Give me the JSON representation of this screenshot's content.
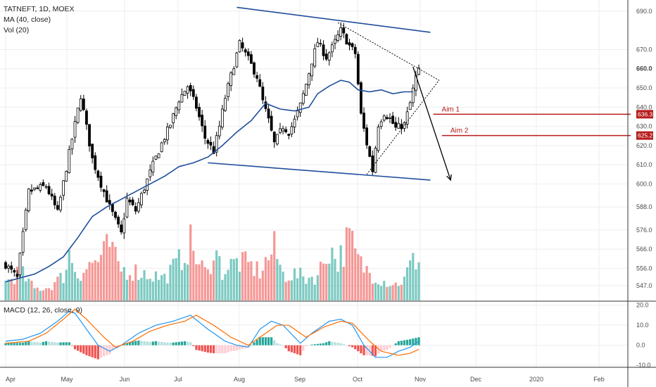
{
  "legend": {
    "symbol": "TATNEFT, 1D, MOEX",
    "ma": "MA (40, close)",
    "vol": "Vol (20)",
    "macd": "MACD (12, 26, close, 9)"
  },
  "colors": {
    "up": "#26a69a",
    "down": "#ef5350",
    "ma_line": "#1f4e9c",
    "channel": "#1f4e9c",
    "aim": "#b71c1c",
    "macd_line": "#2196f3",
    "signal_line": "#ff6d00",
    "grid": "#eeeeee"
  },
  "chart_data": [
    {
      "type": "candlestick",
      "panel": "price",
      "ylim": [
        540,
        694
      ],
      "y_ticks": [
        547,
        556,
        566,
        576,
        588,
        600,
        610,
        620,
        630,
        640,
        650,
        660,
        670,
        690
      ],
      "y_tick_labels": [
        "547.0",
        "556.0",
        "566.0",
        "576.0",
        "588.0",
        "600.0",
        "610.0",
        "620.0",
        "630.0",
        "640.0",
        "650.0",
        "660.0",
        "670.0",
        "690.0"
      ],
      "x_tick_labels": [
        "Apr",
        "May",
        "Jun",
        "Jul",
        "Aug",
        "Sep",
        "Oct",
        "Nov",
        "Dec",
        "2020",
        "Feb"
      ],
      "anchors": [
        [
          0,
          558
        ],
        [
          4,
          551
        ],
        [
          8,
          596
        ],
        [
          14,
          599
        ],
        [
          18,
          585
        ],
        [
          22,
          616
        ],
        [
          26,
          646
        ],
        [
          30,
          613
        ],
        [
          33,
          600
        ],
        [
          36,
          588
        ],
        [
          38,
          581
        ],
        [
          40,
          574
        ],
        [
          42,
          592
        ],
        [
          45,
          586
        ],
        [
          48,
          598
        ],
        [
          51,
          610
        ],
        [
          54,
          621
        ],
        [
          57,
          631
        ],
        [
          60,
          644
        ],
        [
          63,
          651
        ],
        [
          66,
          640
        ],
        [
          69,
          624
        ],
        [
          72,
          617
        ],
        [
          74,
          630
        ],
        [
          76,
          645
        ],
        [
          79,
          662
        ],
        [
          81,
          673
        ],
        [
          84,
          665
        ],
        [
          87,
          656
        ],
        [
          89,
          643
        ],
        [
          91,
          633
        ],
        [
          93,
          621
        ],
        [
          96,
          630
        ],
        [
          98,
          627
        ],
        [
          100,
          633
        ],
        [
          102,
          641
        ],
        [
          104,
          652
        ],
        [
          106,
          664
        ],
        [
          108,
          674
        ],
        [
          111,
          666
        ],
        [
          113,
          671
        ],
        [
          116,
          680
        ],
        [
          119,
          672
        ],
        [
          121,
          668
        ],
        [
          123,
          636
        ],
        [
          125,
          621
        ],
        [
          127,
          607
        ],
        [
          129,
          631
        ],
        [
          131,
          637
        ],
        [
          133,
          634
        ],
        [
          135,
          629
        ],
        [
          138,
          631
        ],
        [
          140,
          642
        ],
        [
          142,
          656
        ],
        [
          143,
          659
        ]
      ],
      "ma": {
        "name": "MA (40, close)",
        "anchors": [
          [
            0,
            549
          ],
          [
            5,
            551
          ],
          [
            10,
            553
          ],
          [
            15,
            557
          ],
          [
            20,
            562
          ],
          [
            25,
            572
          ],
          [
            30,
            583
          ],
          [
            35,
            588
          ],
          [
            40,
            592
          ],
          [
            45,
            596
          ],
          [
            50,
            600
          ],
          [
            55,
            604
          ],
          [
            60,
            609
          ],
          [
            65,
            611
          ],
          [
            70,
            614
          ],
          [
            75,
            620
          ],
          [
            80,
            627
          ],
          [
            85,
            633
          ],
          [
            90,
            642
          ],
          [
            95,
            639
          ],
          [
            100,
            638
          ],
          [
            105,
            640
          ],
          [
            108,
            647
          ],
          [
            112,
            651
          ],
          [
            116,
            654
          ],
          [
            119,
            653
          ],
          [
            122,
            649
          ],
          [
            126,
            648
          ],
          [
            130,
            649
          ],
          [
            134,
            647
          ],
          [
            138,
            648
          ],
          [
            141,
            648
          ]
        ]
      },
      "channel_upper": [
        [
          80,
          692
        ],
        [
          147,
          679
        ]
      ],
      "channel_lower": [
        [
          70,
          611
        ],
        [
          147,
          602
        ]
      ],
      "triangle": [
        [
          115,
          684
        ],
        [
          150,
          654
        ],
        [
          125,
          605
        ]
      ],
      "projection": [
        [
          141,
          661
        ],
        [
          154,
          602
        ]
      ],
      "aims": [
        {
          "label": "Aim 1",
          "value": 636.3,
          "value_label": "636.3",
          "from_x": 148
        },
        {
          "label": "Aim 2",
          "value": 625.2,
          "value_label": "625.2",
          "from_x": 151
        }
      ],
      "last_price_label": "660.0"
    },
    {
      "type": "bar",
      "panel": "volume",
      "anchors": [
        [
          0,
          0.28
        ],
        [
          5,
          0.45
        ],
        [
          10,
          0.18
        ],
        [
          15,
          0.2
        ],
        [
          20,
          0.38
        ],
        [
          22,
          0.72
        ],
        [
          25,
          0.4
        ],
        [
          30,
          0.58
        ],
        [
          33,
          0.65
        ],
        [
          36,
          0.85
        ],
        [
          38,
          0.62
        ],
        [
          40,
          0.48
        ],
        [
          45,
          0.45
        ],
        [
          50,
          0.4
        ],
        [
          55,
          0.35
        ],
        [
          60,
          0.6
        ],
        [
          64,
          0.9
        ],
        [
          67,
          0.55
        ],
        [
          70,
          0.4
        ],
        [
          72,
          0.85
        ],
        [
          75,
          0.45
        ],
        [
          80,
          0.6
        ],
        [
          84,
          0.55
        ],
        [
          88,
          0.45
        ],
        [
          93,
          0.8
        ],
        [
          96,
          0.4
        ],
        [
          100,
          0.4
        ],
        [
          104,
          0.35
        ],
        [
          108,
          0.38
        ],
        [
          112,
          0.82
        ],
        [
          115,
          0.6
        ],
        [
          119,
          0.97
        ],
        [
          121,
          0.72
        ],
        [
          123,
          0.55
        ],
        [
          127,
          0.4
        ],
        [
          131,
          0.3
        ],
        [
          135,
          0.25
        ],
        [
          138,
          0.32
        ],
        [
          140,
          0.55
        ],
        [
          142,
          0.62
        ],
        [
          143,
          0.7
        ]
      ]
    },
    {
      "type": "macd",
      "panel": "macd",
      "ylim": [
        -11,
        22
      ],
      "y_ticks": [
        -10,
        0,
        10,
        20
      ],
      "y_tick_labels": [
        "-10.0",
        "0.0",
        "10.0",
        "20.0"
      ],
      "macd": [
        [
          0,
          2
        ],
        [
          6,
          3
        ],
        [
          12,
          6
        ],
        [
          18,
          12
        ],
        [
          22,
          17
        ],
        [
          24,
          16
        ],
        [
          28,
          8
        ],
        [
          32,
          0
        ],
        [
          36,
          -3
        ],
        [
          40,
          0
        ],
        [
          46,
          6
        ],
        [
          52,
          10
        ],
        [
          58,
          12
        ],
        [
          64,
          15
        ],
        [
          70,
          8
        ],
        [
          76,
          2
        ],
        [
          80,
          0
        ],
        [
          84,
          -1
        ],
        [
          88,
          8
        ],
        [
          92,
          12
        ],
        [
          96,
          10
        ],
        [
          102,
          1
        ],
        [
          106,
          6
        ],
        [
          112,
          12
        ],
        [
          116,
          13
        ],
        [
          120,
          10
        ],
        [
          124,
          0
        ],
        [
          128,
          -6
        ],
        [
          132,
          -6
        ],
        [
          136,
          -3
        ],
        [
          140,
          -1
        ],
        [
          143,
          2
        ]
      ],
      "signal": [
        [
          0,
          1
        ],
        [
          8,
          2
        ],
        [
          14,
          6
        ],
        [
          20,
          13
        ],
        [
          24,
          18
        ],
        [
          28,
          13
        ],
        [
          34,
          4
        ],
        [
          38,
          -1
        ],
        [
          44,
          2
        ],
        [
          50,
          7
        ],
        [
          56,
          10
        ],
        [
          62,
          12
        ],
        [
          66,
          15
        ],
        [
          72,
          10
        ],
        [
          78,
          4
        ],
        [
          84,
          0
        ],
        [
          88,
          4
        ],
        [
          94,
          10
        ],
        [
          98,
          10
        ],
        [
          104,
          4
        ],
        [
          110,
          9
        ],
        [
          116,
          12
        ],
        [
          120,
          11
        ],
        [
          126,
          2
        ],
        [
          130,
          -3
        ],
        [
          136,
          -5
        ],
        [
          140,
          -4
        ],
        [
          143,
          -2
        ]
      ]
    }
  ]
}
